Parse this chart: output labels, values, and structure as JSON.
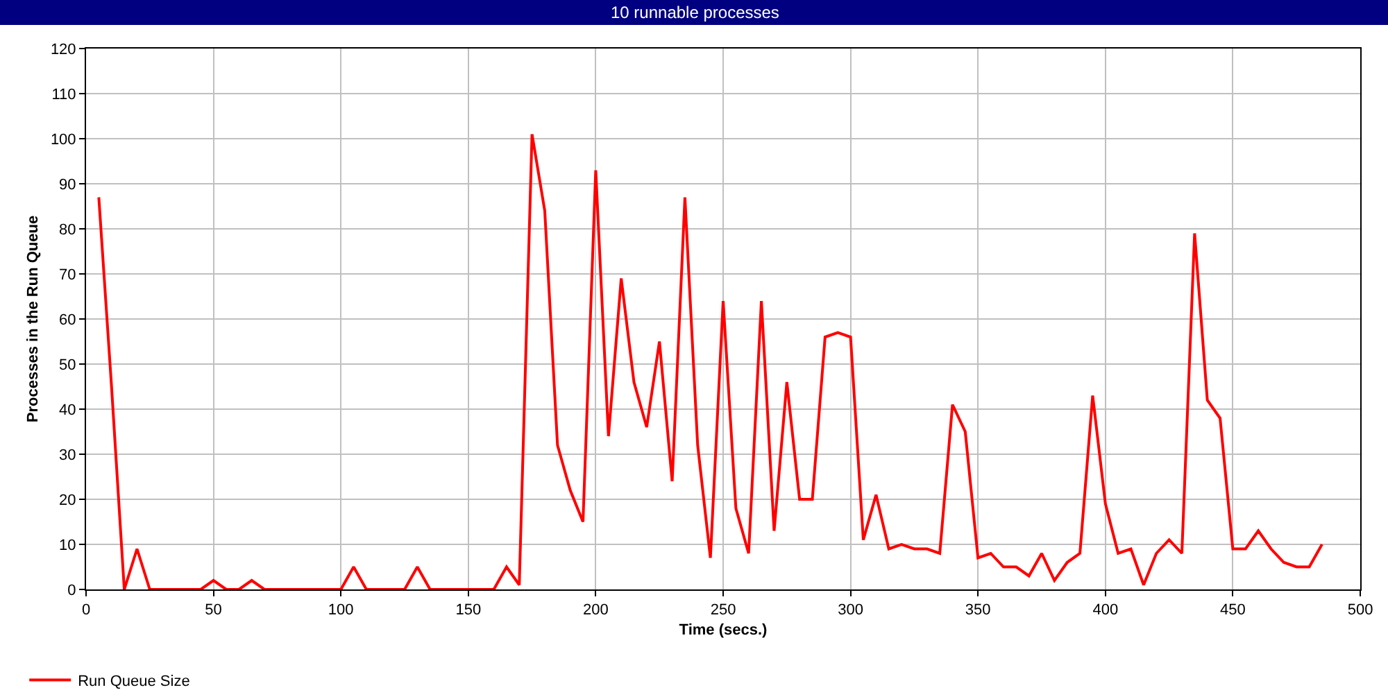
{
  "chart_data": {
    "type": "line",
    "title": "10 runnable processes",
    "xlabel": "Time (secs.)",
    "ylabel": "Processes in the Run Queue",
    "x": [
      5,
      10,
      15,
      20,
      25,
      30,
      35,
      40,
      45,
      50,
      55,
      60,
      65,
      70,
      75,
      80,
      85,
      90,
      95,
      100,
      105,
      110,
      115,
      120,
      125,
      130,
      135,
      140,
      145,
      150,
      155,
      160,
      165,
      170,
      175,
      180,
      185,
      190,
      195,
      200,
      205,
      210,
      215,
      220,
      225,
      230,
      235,
      240,
      245,
      250,
      255,
      260,
      265,
      270,
      275,
      280,
      285,
      290,
      295,
      300,
      305,
      310,
      315,
      320,
      325,
      330,
      335,
      340,
      345,
      350,
      355,
      360,
      365,
      370,
      375,
      380,
      385,
      390,
      395,
      400,
      405,
      410,
      415,
      420,
      425,
      430,
      435,
      440,
      445,
      450,
      455,
      460,
      465,
      470,
      475,
      480,
      485
    ],
    "series": [
      {
        "name": "Run Queue Size",
        "color": "#ff0000",
        "values": [
          87,
          45,
          0,
          9,
          0,
          0,
          0,
          0,
          0,
          2,
          0,
          0,
          2,
          0,
          0,
          0,
          0,
          0,
          0,
          0,
          5,
          0,
          0,
          0,
          0,
          5,
          0,
          0,
          0,
          0,
          0,
          0,
          5,
          1,
          101,
          84,
          32,
          22,
          15,
          93,
          34,
          69,
          46,
          36,
          55,
          24,
          87,
          32,
          7,
          64,
          18,
          8,
          64,
          13,
          46,
          20,
          20,
          56,
          57,
          56,
          11,
          21,
          9,
          10,
          9,
          9,
          8,
          41,
          35,
          7,
          8,
          5,
          5,
          3,
          8,
          2,
          6,
          8,
          43,
          19,
          8,
          9,
          1,
          8,
          11,
          8,
          79,
          42,
          38,
          9,
          9,
          13,
          9,
          6,
          5,
          5,
          10
        ]
      }
    ],
    "xlim": [
      0,
      500
    ],
    "xticks": [
      0,
      50,
      100,
      150,
      200,
      250,
      300,
      350,
      400,
      450,
      500
    ],
    "ylim": [
      0,
      120
    ],
    "yticks": [
      0,
      10,
      20,
      30,
      40,
      50,
      60,
      70,
      80,
      90,
      100,
      110,
      120
    ],
    "grid": true,
    "legend": "bottom left",
    "marker": "none",
    "line_style": "solid"
  }
}
